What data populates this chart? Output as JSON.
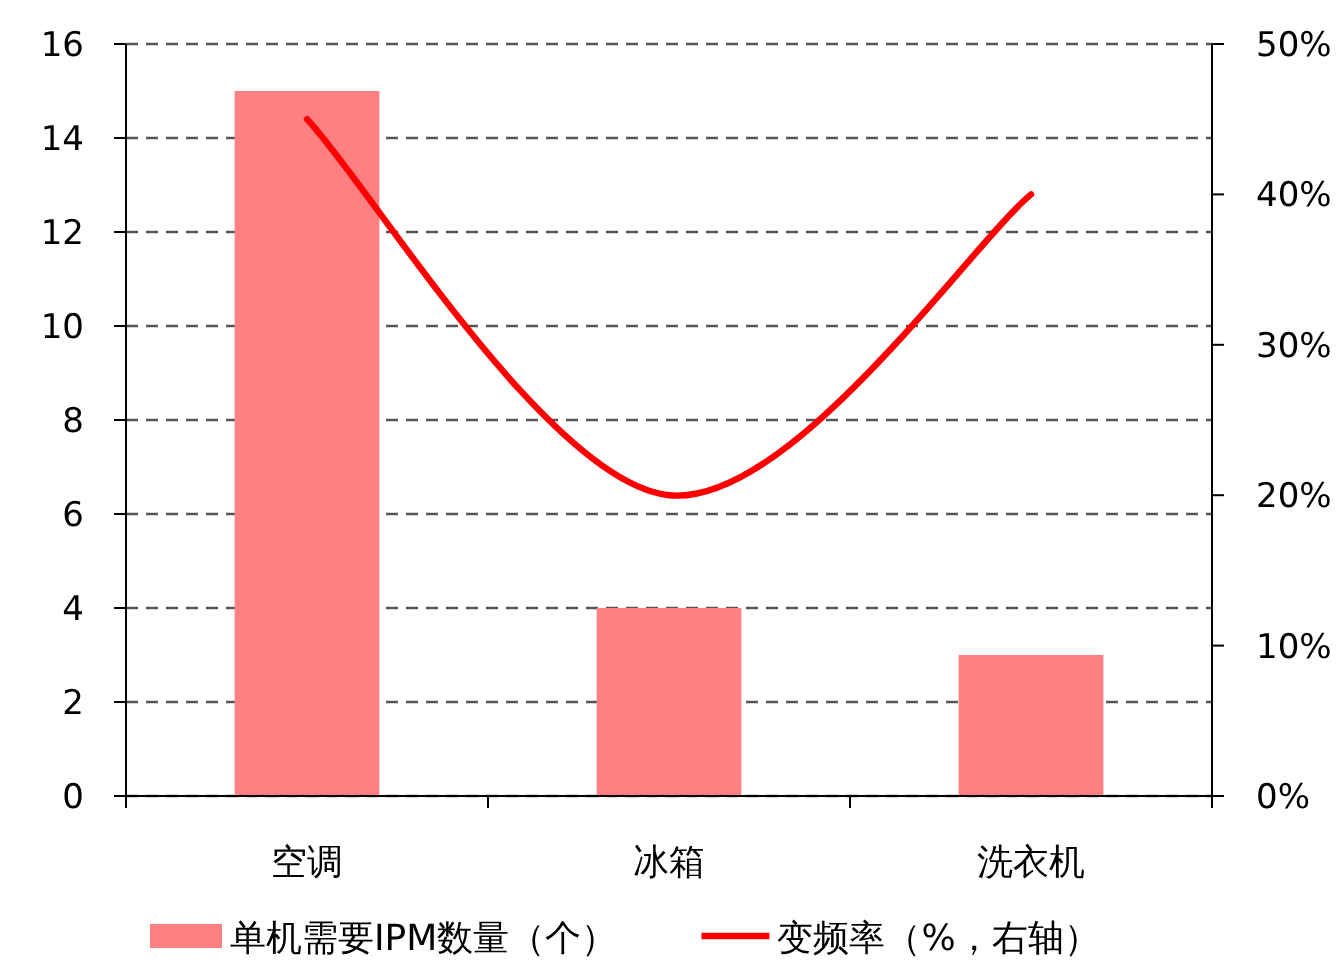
{
  "chart_data": {
    "type": "bar",
    "categories": [
      "空调",
      "冰箱",
      "洗衣机"
    ],
    "series": [
      {
        "name": "单机需要IPM数量（个）",
        "color": "#ff8080",
        "values": [
          15,
          4,
          3
        ]
      },
      {
        "name": "变频率（%，右轴）",
        "type": "line",
        "axis": "y2",
        "color": "#ff0000",
        "values": [
          45,
          20,
          40
        ]
      }
    ],
    "ylim": [
      0,
      16
    ],
    "yticks": [
      0,
      2,
      4,
      6,
      8,
      10,
      12,
      14,
      16
    ],
    "y2lim": [
      0,
      50
    ],
    "y2ticks": [
      {
        "value": 0,
        "label": "0%"
      },
      {
        "value": 10,
        "label": "10%"
      },
      {
        "value": 20,
        "label": "20%"
      },
      {
        "value": 30,
        "label": "30%"
      },
      {
        "value": 40,
        "label": "40%"
      },
      {
        "value": 50,
        "label": "50%"
      }
    ],
    "grid": "y",
    "legend": "bottom"
  }
}
